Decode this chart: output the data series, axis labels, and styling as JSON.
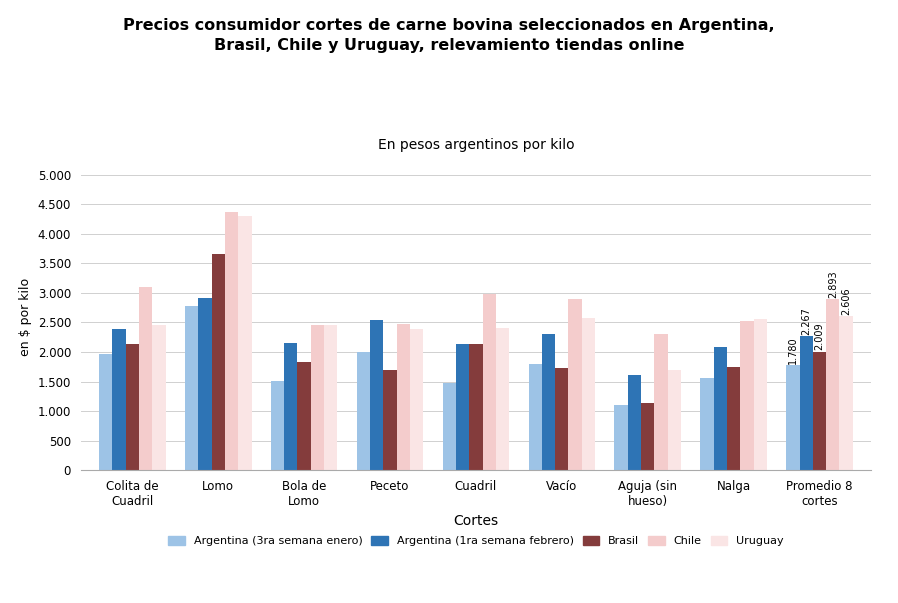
{
  "title": "Precios consumidor cortes de carne bovina seleccionados en Argentina,\nBrasil, Chile y Uruguay, relevamiento tiendas online",
  "subtitle": "En pesos argentinos por kilo",
  "xlabel": "Cortes",
  "ylabel": "en $ por kilo",
  "categories": [
    "Colita de\nCuadril",
    "Lomo",
    "Bola de\nLomo",
    "Peceto",
    "Cuadril",
    "Vacío",
    "Aguja (sin\nhueso)",
    "Nalga",
    "Promedio 8\ncortes"
  ],
  "series": {
    "Argentina 3ra enero": [
      1975,
      2780,
      1510,
      2000,
      1480,
      1800,
      1110,
      1560,
      1780
    ],
    "Argentina 1ra febrero": [
      2390,
      2920,
      2160,
      2540,
      2140,
      2300,
      1620,
      2090,
      2267
    ],
    "Brasil": [
      2130,
      3660,
      1840,
      1700,
      2130,
      1730,
      1140,
      1740,
      2009
    ],
    "Chile": [
      3100,
      4370,
      2460,
      2480,
      2990,
      2890,
      2310,
      2530,
      2893
    ],
    "Uruguay": [
      2450,
      4300,
      2460,
      2390,
      2410,
      2580,
      1690,
      2560,
      2606
    ]
  },
  "colors": {
    "Argentina 3ra enero": "#9DC3E6",
    "Argentina 1ra febrero": "#2E74B5",
    "Brasil": "#843C3C",
    "Chile": "#F4CCCC",
    "Uruguay": "#FAE5E5"
  },
  "annotations": {
    "Argentina 3ra enero": "1.780",
    "Argentina 1ra febrero": "2.267",
    "Brasil": "2.009",
    "Chile": "2.893",
    "Uruguay": "2.606"
  },
  "ylim": [
    0,
    5200
  ],
  "yticks": [
    0,
    500,
    1000,
    1500,
    2000,
    2500,
    3000,
    3500,
    4000,
    4500,
    5000
  ],
  "ytick_labels": [
    "0",
    "500",
    "1.000",
    "1.500",
    "2.000",
    "2.500",
    "3.000",
    "3.500",
    "4.000",
    "4.500",
    "5.000"
  ],
  "legend_labels": [
    "Argentina (3ra semana enero)",
    "Argentina (1ra semana febrero)",
    "Brasil",
    "Chile",
    "Uruguay"
  ],
  "background_color": "#ffffff",
  "grid_color": "#d0d0d0"
}
